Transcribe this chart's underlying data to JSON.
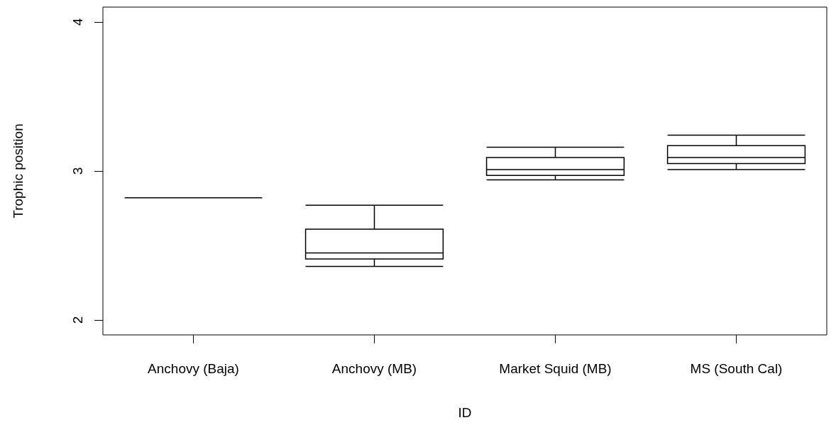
{
  "chart_data": {
    "type": "box",
    "xlabel": "ID",
    "ylabel": "Trophic position",
    "categories": [
      "Anchovy (Baja)",
      "Anchovy (MB)",
      "Market Squid (MB)",
      "MS (South Cal)"
    ],
    "boxes": [
      {
        "low": 2.82,
        "q1": 2.82,
        "median": 2.82,
        "q3": 2.82,
        "high": 2.82
      },
      {
        "low": 2.36,
        "q1": 2.41,
        "median": 2.45,
        "q3": 2.61,
        "high": 2.77
      },
      {
        "low": 2.94,
        "q1": 2.97,
        "median": 3.01,
        "q3": 3.09,
        "high": 3.16
      },
      {
        "low": 3.01,
        "q1": 3.05,
        "median": 3.09,
        "q3": 3.17,
        "high": 3.24
      }
    ],
    "color": "#000000",
    "ylim": [
      1.9,
      4.1
    ],
    "yticks": [
      2,
      3,
      4
    ],
    "grid": false
  }
}
